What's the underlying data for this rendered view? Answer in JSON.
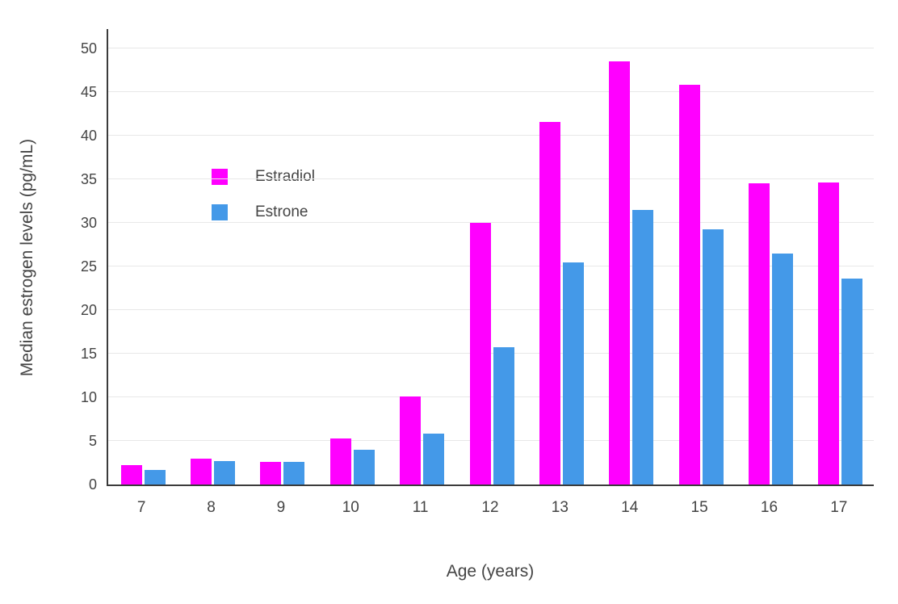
{
  "chart_data": {
    "type": "bar",
    "title": "",
    "xlabel": "Age (years)",
    "ylabel": "Median estrogen levels (pg/mL)",
    "categories": [
      7,
      8,
      9,
      10,
      11,
      12,
      13,
      14,
      15,
      16,
      17
    ],
    "series": [
      {
        "name": "Estradiol",
        "color": "#FF00FF",
        "values": [
          2.2,
          3.0,
          2.6,
          5.3,
          10.1,
          30.0,
          41.6,
          48.5,
          45.8,
          34.5,
          34.6
        ]
      },
      {
        "name": "Estrone",
        "color": "#4499E8",
        "values": [
          1.7,
          2.7,
          2.6,
          4.0,
          5.8,
          15.7,
          25.5,
          31.5,
          29.3,
          26.5,
          23.6
        ]
      }
    ],
    "ylim": [
      0,
      50
    ],
    "yticks": [
      0,
      5,
      10,
      15,
      20,
      25,
      30,
      35,
      40,
      45,
      50
    ],
    "grid": true,
    "legend_position": "inside-top-left"
  },
  "colors": {
    "axis_line": "#3b3b3b",
    "grid_line": "#e8e8e8",
    "tick_text": "#444444",
    "background": "#ffffff"
  }
}
